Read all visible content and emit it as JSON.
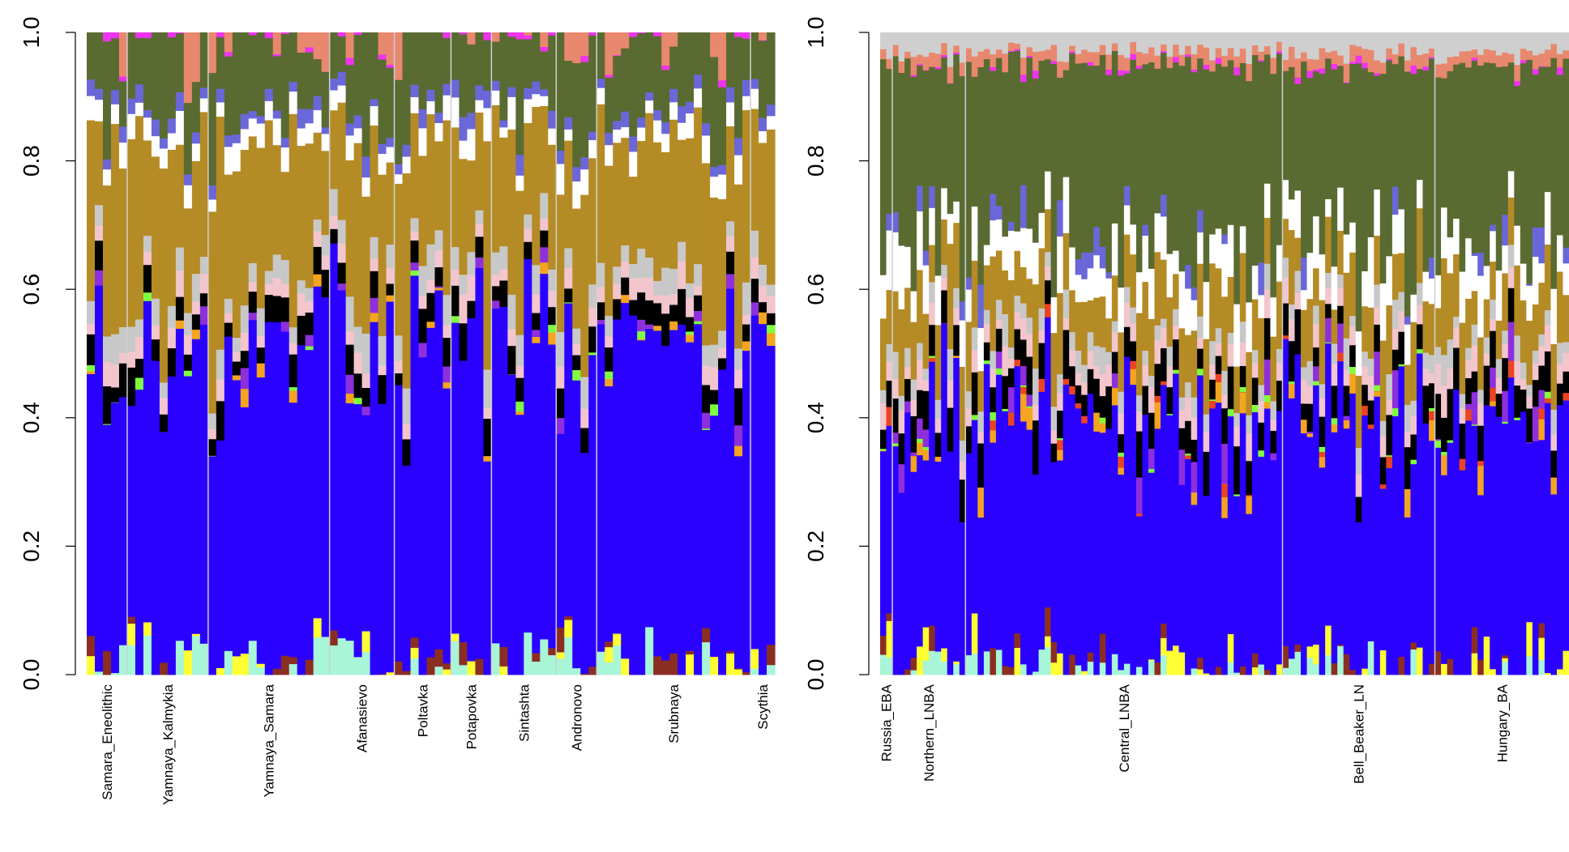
{
  "chart_data": [
    {
      "type": "stacked-bar",
      "panel": "left",
      "ylim": [
        0,
        1
      ],
      "yticks": [
        "0.0",
        "0.2",
        "0.4",
        "0.6",
        "0.8",
        "1.0"
      ],
      "yticks_values": [
        0,
        0.2,
        0.4,
        0.6,
        0.8,
        1.0
      ],
      "grid": false,
      "n_bars": 85,
      "groups": [
        {
          "label": "Samara_Eneolithic",
          "n": 5
        },
        {
          "label": "Yamnaya_Kalmykia",
          "n": 10
        },
        {
          "label": "Yamnaya_Samara",
          "n": 15
        },
        {
          "label": "Afanasievo",
          "n": 8
        },
        {
          "label": "Poltavka",
          "n": 7
        },
        {
          "label": "Potapovka",
          "n": 5
        },
        {
          "label": "Sintashta",
          "n": 8
        },
        {
          "label": "Andronovo",
          "n": 5
        },
        {
          "label": "Srubnaya",
          "n": 19
        },
        {
          "label": "Scythia",
          "n": 3
        }
      ],
      "components": [
        {
          "color": "#a8f5d8",
          "mean": 0.012
        },
        {
          "color": "#ffff33",
          "mean": 0.006
        },
        {
          "color": "#8b2e22",
          "mean": 0.006
        },
        {
          "color": "#2a00ff",
          "mean": 0.46
        },
        {
          "color": "#f4a41e",
          "mean": 0.004
        },
        {
          "color": "#7fff40",
          "mean": 0.003
        },
        {
          "color": "#8e2fdc",
          "mean": 0.005
        },
        {
          "color": "#000000",
          "mean": 0.035
        },
        {
          "color": "#f2c6cc",
          "mean": 0.025
        },
        {
          "color": "#c8c8c8",
          "mean": 0.035
        },
        {
          "color": "#b58b25",
          "mean": 0.21
        },
        {
          "color": "#ffffff",
          "mean": 0.03
        },
        {
          "color": "#6a67d8",
          "mean": 0.02
        },
        {
          "color": "#5a6b32",
          "mean": 0.11
        },
        {
          "color": "#ee33ee",
          "mean": 0.002
        },
        {
          "color": "#e8886e",
          "mean": 0.015
        }
      ]
    },
    {
      "type": "stacked-bar",
      "panel": "right",
      "ylim": [
        0,
        1
      ],
      "yticks": [
        "0.0",
        "0.2",
        "0.4",
        "0.6",
        "0.8",
        "1.0"
      ],
      "yticks_values": [
        0,
        0.2,
        0.4,
        0.6,
        0.8,
        1.0
      ],
      "grid": false,
      "n_bars": 113,
      "groups": [
        {
          "label": "Russia_EBA",
          "n": 2
        },
        {
          "label": "Northern_LNBA",
          "n": 12
        },
        {
          "label": "Central_LNBA",
          "n": 52
        },
        {
          "label": "Bell_Beaker_LN",
          "n": 25
        },
        {
          "label": "Hungary_BA",
          "n": 22
        }
      ],
      "components": [
        {
          "color": "#a8f5d8",
          "mean": 0.008
        },
        {
          "color": "#ffff33",
          "mean": 0.01
        },
        {
          "color": "#8b2e22",
          "mean": 0.008
        },
        {
          "color": "#2a00ff",
          "mean": 0.38
        },
        {
          "color": "#f4a41e",
          "mean": 0.008
        },
        {
          "color": "#ea4422",
          "mean": 0.004
        },
        {
          "color": "#7fff40",
          "mean": 0.002
        },
        {
          "color": "#8e2fdc",
          "mean": 0.01
        },
        {
          "color": "#000000",
          "mean": 0.05
        },
        {
          "color": "#f2c6cc",
          "mean": 0.03
        },
        {
          "color": "#c8c8c8",
          "mean": 0.03
        },
        {
          "color": "#b58b25",
          "mean": 0.09
        },
        {
          "color": "#ffffff",
          "mean": 0.06
        },
        {
          "color": "#6a67d8",
          "mean": 0.012
        },
        {
          "color": "#5a6b32",
          "mean": 0.27
        },
        {
          "color": "#ee33ee",
          "mean": 0.002
        },
        {
          "color": "#e8886e",
          "mean": 0.02
        },
        {
          "color": "#cfcfcf",
          "mean": 0.03
        }
      ]
    }
  ]
}
